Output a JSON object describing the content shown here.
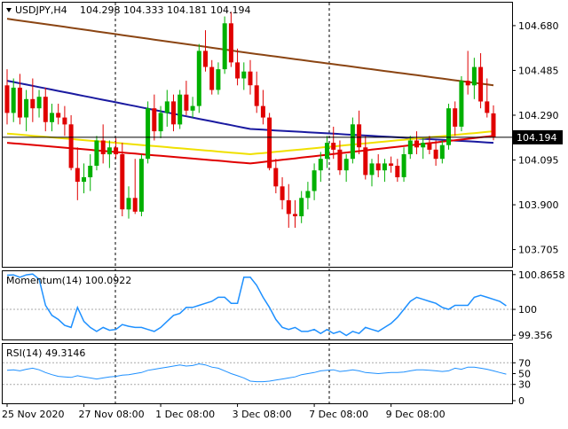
{
  "header": {
    "symbol": "USDJPY,H4",
    "ohlc": "104.298 104.333 104.181 104.194"
  },
  "chart_data": [
    {
      "type": "candlestick",
      "panel": "price",
      "symbol": "USDJPY",
      "timeframe": "H4",
      "ylim": [
        103.63,
        104.78
      ],
      "y_ticks": [
        "104.680",
        "104.485",
        "104.290",
        "104.095",
        "103.900",
        "103.705"
      ],
      "current_price": 104.194,
      "current_price_label": "104.194",
      "x_labels": [
        "25 Nov 2020",
        "27 Nov 08:00",
        "1 Dec 08:00",
        "3 Dec 08:00",
        "7 Dec 08:00",
        "9 Dec 08:00"
      ],
      "colors": {
        "up": "#00b000",
        "down": "#e00000",
        "grid": "#000000"
      },
      "candles": [
        [
          104.42,
          104.49,
          104.25,
          104.3
        ],
        [
          104.3,
          104.45,
          104.26,
          104.41
        ],
        [
          104.41,
          104.47,
          104.25,
          104.28
        ],
        [
          104.28,
          104.4,
          104.22,
          104.36
        ],
        [
          104.36,
          104.45,
          104.26,
          104.32
        ],
        [
          104.32,
          104.4,
          104.28,
          104.37
        ],
        [
          104.37,
          104.41,
          104.22,
          104.26
        ],
        [
          104.26,
          104.34,
          104.22,
          104.3
        ],
        [
          104.3,
          104.34,
          104.25,
          104.28
        ],
        [
          104.28,
          104.33,
          104.2,
          104.25
        ],
        [
          104.25,
          104.29,
          104.05,
          104.06
        ],
        [
          104.06,
          104.15,
          103.92,
          104.0
        ],
        [
          104.0,
          104.08,
          103.95,
          104.02
        ],
        [
          104.02,
          104.12,
          103.96,
          104.07
        ],
        [
          104.07,
          104.2,
          104.05,
          104.18
        ],
        [
          104.18,
          104.25,
          104.08,
          104.12
        ],
        [
          104.12,
          104.18,
          104.06,
          104.15
        ],
        [
          104.15,
          104.19,
          104.1,
          104.12
        ],
        [
          104.12,
          104.17,
          103.85,
          103.88
        ],
        [
          103.88,
          103.98,
          103.84,
          103.93
        ],
        [
          103.93,
          104.1,
          103.86,
          103.87
        ],
        [
          103.87,
          104.12,
          103.85,
          104.1
        ],
        [
          104.1,
          104.35,
          104.08,
          104.32
        ],
        [
          104.32,
          104.38,
          104.18,
          104.22
        ],
        [
          104.22,
          104.33,
          104.19,
          104.3
        ],
        [
          104.3,
          104.4,
          104.24,
          104.35
        ],
        [
          104.35,
          104.38,
          104.22,
          104.25
        ],
        [
          104.25,
          104.4,
          104.23,
          104.38
        ],
        [
          104.38,
          104.44,
          104.29,
          104.31
        ],
        [
          104.31,
          104.37,
          104.28,
          104.33
        ],
        [
          104.33,
          104.6,
          104.3,
          104.57
        ],
        [
          104.57,
          104.66,
          104.48,
          104.5
        ],
        [
          104.5,
          104.53,
          104.38,
          104.4
        ],
        [
          104.4,
          104.52,
          104.38,
          104.49
        ],
        [
          104.49,
          104.72,
          104.47,
          104.69
        ],
        [
          104.69,
          104.74,
          104.5,
          104.52
        ],
        [
          104.52,
          104.58,
          104.42,
          104.45
        ],
        [
          104.45,
          104.52,
          104.4,
          104.48
        ],
        [
          104.48,
          104.53,
          104.38,
          104.42
        ],
        [
          104.42,
          104.48,
          104.3,
          104.33
        ],
        [
          104.33,
          104.4,
          104.25,
          104.28
        ],
        [
          104.28,
          104.3,
          104.05,
          104.06
        ],
        [
          104.06,
          104.1,
          103.95,
          103.98
        ],
        [
          103.98,
          104.02,
          103.88,
          103.92
        ],
        [
          103.92,
          103.99,
          103.8,
          103.86
        ],
        [
          103.86,
          103.92,
          103.8,
          103.85
        ],
        [
          103.85,
          103.96,
          103.82,
          103.93
        ],
        [
          103.93,
          104.0,
          103.88,
          103.96
        ],
        [
          103.96,
          104.08,
          103.92,
          104.05
        ],
        [
          104.05,
          104.13,
          104.0,
          104.1
        ],
        [
          104.1,
          104.2,
          104.06,
          104.17
        ],
        [
          104.17,
          104.24,
          104.1,
          104.14
        ],
        [
          104.14,
          104.18,
          104.03,
          104.05
        ],
        [
          104.05,
          104.12,
          104.0,
          104.1
        ],
        [
          104.1,
          104.28,
          104.08,
          104.25
        ],
        [
          104.25,
          104.31,
          104.12,
          104.15
        ],
        [
          104.15,
          104.2,
          104.01,
          104.03
        ],
        [
          104.03,
          104.1,
          103.98,
          104.08
        ],
        [
          104.08,
          104.12,
          104.02,
          104.05
        ],
        [
          104.05,
          104.1,
          104.0,
          104.08
        ],
        [
          104.08,
          104.11,
          104.04,
          104.07
        ],
        [
          104.07,
          104.1,
          104.0,
          104.02
        ],
        [
          104.02,
          104.15,
          104.0,
          104.12
        ],
        [
          104.12,
          104.2,
          104.1,
          104.18
        ],
        [
          104.18,
          104.22,
          104.12,
          104.15
        ],
        [
          104.15,
          104.19,
          104.1,
          104.17
        ],
        [
          104.17,
          104.2,
          104.12,
          104.14
        ],
        [
          104.14,
          104.18,
          104.07,
          104.1
        ],
        [
          104.1,
          104.18,
          104.08,
          104.16
        ],
        [
          104.16,
          104.34,
          104.14,
          104.32
        ],
        [
          104.32,
          104.35,
          104.2,
          104.24
        ],
        [
          104.24,
          104.46,
          104.22,
          104.44
        ],
        [
          104.44,
          104.57,
          104.38,
          104.42
        ],
        [
          104.42,
          104.54,
          104.36,
          104.5
        ],
        [
          104.5,
          104.56,
          104.32,
          104.35
        ],
        [
          104.35,
          104.45,
          104.28,
          104.3
        ],
        [
          104.298,
          104.333,
          104.181,
          104.194
        ]
      ],
      "series": [
        {
          "name": "brown",
          "color": "#8b4513",
          "values": [
            104.71,
            104.56,
            104.42
          ]
        },
        {
          "name": "blue",
          "color": "#1a1aa0",
          "values": [
            104.44,
            104.23,
            104.17
          ]
        },
        {
          "name": "red",
          "color": "#e00000",
          "values": [
            104.17,
            104.08,
            104.2
          ]
        },
        {
          "name": "yellow",
          "color": "#f0e000",
          "values": [
            104.21,
            104.12,
            104.22
          ]
        }
      ]
    },
    {
      "type": "line",
      "panel": "momentum",
      "title": "Momentum(14) 100.0922",
      "ylim": [
        99.25,
        100.95
      ],
      "y_ticks": [
        "100.8658",
        "100",
        "99.356"
      ],
      "reference_level": 100,
      "color": "#1e90ff",
      "values": [
        100.85,
        100.86,
        100.8,
        100.86,
        100.88,
        100.75,
        100.1,
        99.85,
        99.75,
        99.6,
        99.55,
        100.05,
        99.7,
        99.55,
        99.45,
        99.55,
        99.48,
        99.5,
        99.62,
        99.58,
        99.55,
        99.55,
        99.5,
        99.45,
        99.55,
        99.7,
        99.85,
        99.9,
        100.05,
        100.05,
        100.1,
        100.15,
        100.2,
        100.3,
        100.3,
        100.15,
        100.15,
        100.8,
        100.8,
        100.6,
        100.3,
        100.05,
        99.75,
        99.55,
        99.5,
        99.55,
        99.45,
        99.45,
        99.5,
        99.4,
        99.5,
        99.4,
        99.45,
        99.35,
        99.45,
        99.4,
        99.55,
        99.5,
        99.45,
        99.55,
        99.65,
        99.8,
        100.0,
        100.2,
        100.3,
        100.25,
        100.2,
        100.15,
        100.05,
        100.0,
        100.1,
        100.1,
        100.1,
        100.3,
        100.35,
        100.3,
        100.25,
        100.2,
        100.09
      ]
    },
    {
      "type": "line",
      "panel": "rsi",
      "title": "RSI(14) 49.3146",
      "ylim": [
        0,
        100
      ],
      "y_ticks": [
        "70",
        "50",
        "30",
        "0"
      ],
      "levels": [
        70,
        30
      ],
      "color": "#1e90ff",
      "values": [
        56,
        57,
        55,
        58,
        60,
        57,
        52,
        48,
        45,
        44,
        43,
        46,
        44,
        42,
        40,
        42,
        44,
        45,
        47,
        48,
        50,
        52,
        56,
        58,
        60,
        62,
        64,
        66,
        64,
        65,
        68,
        66,
        62,
        60,
        55,
        50,
        46,
        42,
        36,
        35,
        35,
        36,
        38,
        40,
        42,
        44,
        48,
        50,
        52,
        55,
        56,
        57,
        54,
        55,
        57,
        55,
        52,
        51,
        50,
        51,
        52,
        52,
        53,
        55,
        57,
        57,
        56,
        55,
        54,
        55,
        60,
        58,
        62,
        62,
        60,
        58,
        55,
        52,
        49
      ]
    }
  ]
}
